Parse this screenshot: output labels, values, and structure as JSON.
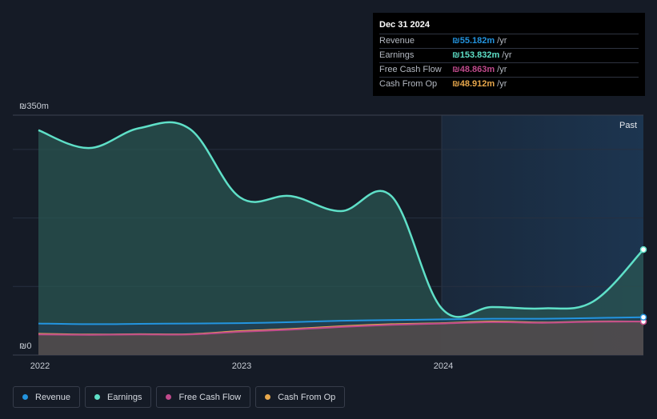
{
  "chart_data": {
    "type": "area",
    "y_axis": {
      "max_label": "₪350m",
      "min_label": "₪0",
      "ylim": [
        0,
        350
      ]
    },
    "x_ticks": [
      {
        "label": "2022",
        "x": 2022.0
      },
      {
        "label": "2023",
        "x": 2023.0
      },
      {
        "label": "2024",
        "x": 2024.0
      }
    ],
    "xlim": [
      2022.0,
      2025.0
    ],
    "past_label": "Past",
    "past_start": 2024.0,
    "grid": true,
    "series": [
      {
        "name": "Earnings",
        "color": "#5fe0c8",
        "points": [
          [
            2022.0,
            328
          ],
          [
            2022.25,
            302
          ],
          [
            2022.5,
            331
          ],
          [
            2022.75,
            330
          ],
          [
            2023.0,
            230
          ],
          [
            2023.25,
            232
          ],
          [
            2023.5,
            210
          ],
          [
            2023.75,
            232
          ],
          [
            2024.0,
            68
          ],
          [
            2024.25,
            70
          ],
          [
            2024.5,
            68
          ],
          [
            2024.75,
            78
          ],
          [
            2025.0,
            153.832
          ]
        ]
      },
      {
        "name": "Revenue",
        "color": "#2394df",
        "points": [
          [
            2022.0,
            46
          ],
          [
            2022.25,
            45
          ],
          [
            2022.5,
            45.5
          ],
          [
            2022.75,
            46
          ],
          [
            2023.0,
            46.5
          ],
          [
            2023.25,
            48
          ],
          [
            2023.5,
            50
          ],
          [
            2023.75,
            51
          ],
          [
            2024.0,
            52
          ],
          [
            2024.25,
            53
          ],
          [
            2024.5,
            53
          ],
          [
            2024.75,
            54
          ],
          [
            2025.0,
            55.182
          ]
        ]
      },
      {
        "name": "Free Cash Flow",
        "color": "#c04a8c",
        "points": [
          [
            2022.0,
            30
          ],
          [
            2022.25,
            29.5
          ],
          [
            2022.5,
            30
          ],
          [
            2022.75,
            30
          ],
          [
            2023.0,
            34
          ],
          [
            2023.25,
            37
          ],
          [
            2023.5,
            41
          ],
          [
            2023.75,
            44
          ],
          [
            2024.0,
            46
          ],
          [
            2024.25,
            48
          ],
          [
            2024.5,
            47
          ],
          [
            2024.75,
            48.5
          ],
          [
            2025.0,
            48.863
          ]
        ]
      },
      {
        "name": "Cash From Op",
        "color": "#e8a84c",
        "points": [
          [
            2022.0,
            31
          ],
          [
            2022.25,
            30
          ],
          [
            2022.5,
            30.5
          ],
          [
            2022.75,
            30.5
          ],
          [
            2023.0,
            35
          ],
          [
            2023.25,
            38
          ],
          [
            2023.5,
            42
          ],
          [
            2023.75,
            45
          ],
          [
            2024.0,
            46.5
          ],
          [
            2024.25,
            49
          ],
          [
            2024.5,
            47.5
          ],
          [
            2024.75,
            49
          ],
          [
            2025.0,
            48.912
          ]
        ]
      }
    ]
  },
  "tooltip": {
    "date": "Dec 31 2024",
    "rows": [
      {
        "label": "Revenue",
        "value": "₪55.182m",
        "unit": "/yr",
        "color": "#2394df"
      },
      {
        "label": "Earnings",
        "value": "₪153.832m",
        "unit": "/yr",
        "color": "#5fe0c8"
      },
      {
        "label": "Free Cash Flow",
        "value": "₪48.863m",
        "unit": "/yr",
        "color": "#c04a8c"
      },
      {
        "label": "Cash From Op",
        "value": "₪48.912m",
        "unit": "/yr",
        "color": "#e8a84c"
      }
    ]
  },
  "legend": [
    {
      "label": "Revenue",
      "color": "#2394df"
    },
    {
      "label": "Earnings",
      "color": "#5fe0c8"
    },
    {
      "label": "Free Cash Flow",
      "color": "#c04a8c"
    },
    {
      "label": "Cash From Op",
      "color": "#e8a84c"
    }
  ]
}
